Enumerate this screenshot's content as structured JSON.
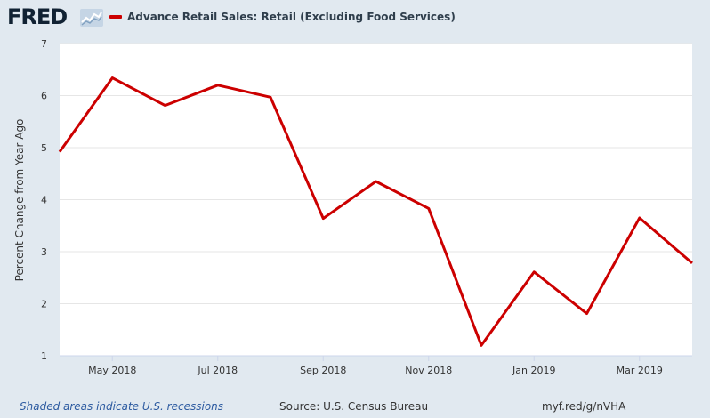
{
  "header": {
    "logo_text": "FRED",
    "series_label": "Advance Retail Sales: Retail (Excluding Food Services)",
    "series_color": "#cc0000"
  },
  "footer": {
    "recession_note": "Shaded areas indicate U.S. recessions",
    "source": "Source: U.S. Census Bureau",
    "short_url": "myf.red/g/nVHA"
  },
  "chart_data": {
    "type": "line",
    "title": "",
    "ylabel": "Percent Change from Year Ago",
    "xlabel": "",
    "ylim": [
      1,
      7
    ],
    "yticks": [
      1,
      2,
      3,
      4,
      5,
      6,
      7
    ],
    "x": [
      "2018-04",
      "2018-05",
      "2018-06",
      "2018-07",
      "2018-08",
      "2018-09",
      "2018-10",
      "2018-11",
      "2018-12",
      "2019-01",
      "2019-02",
      "2019-03",
      "2019-04"
    ],
    "xtick_labels": [
      "May 2018",
      "Jul 2018",
      "Sep 2018",
      "Nov 2018",
      "Jan 2019",
      "Mar 2019"
    ],
    "xtick_months": [
      "2018-05",
      "2018-07",
      "2018-09",
      "2018-11",
      "2019-01",
      "2019-03"
    ],
    "series": [
      {
        "name": "Advance Retail Sales: Retail (Excluding Food Services)",
        "color": "#cc0000",
        "values": [
          4.92,
          6.34,
          5.81,
          6.2,
          5.97,
          3.64,
          4.35,
          3.83,
          1.2,
          2.61,
          1.81,
          3.65,
          2.78
        ]
      }
    ],
    "grid": true,
    "background": "#ffffff"
  }
}
